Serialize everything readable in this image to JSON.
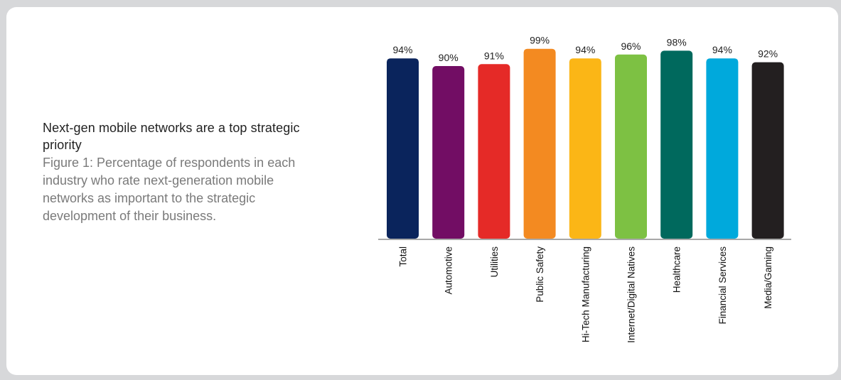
{
  "caption": {
    "title": "Next-gen mobile networks are a top strategic priority",
    "body": "Figure 1: Percentage of respondents in each industry who rate next-generation mobile networks as important to the strategic development of their business."
  },
  "chart_data": {
    "type": "bar",
    "title": "",
    "xlabel": "",
    "ylabel": "",
    "ylim": [
      0,
      100
    ],
    "grid": false,
    "legend": "none",
    "categories": [
      "Total",
      "Automotive",
      "Utilities",
      "Public Safety",
      "Hi-Tech Manufacturing",
      "Internet/Digital Natives",
      "Healthcare",
      "Financial Services",
      "Media/Gaming"
    ],
    "values": [
      94,
      90,
      91,
      99,
      94,
      96,
      98,
      94,
      92
    ],
    "value_labels": [
      "94%",
      "90%",
      "91%",
      "99%",
      "94%",
      "96%",
      "98%",
      "94%",
      "92%"
    ],
    "colors": [
      "#0a245c",
      "#720d64",
      "#e52a27",
      "#f38a21",
      "#fbb616",
      "#7dc143",
      "#00695d",
      "#00a9dc",
      "#231f20"
    ]
  }
}
